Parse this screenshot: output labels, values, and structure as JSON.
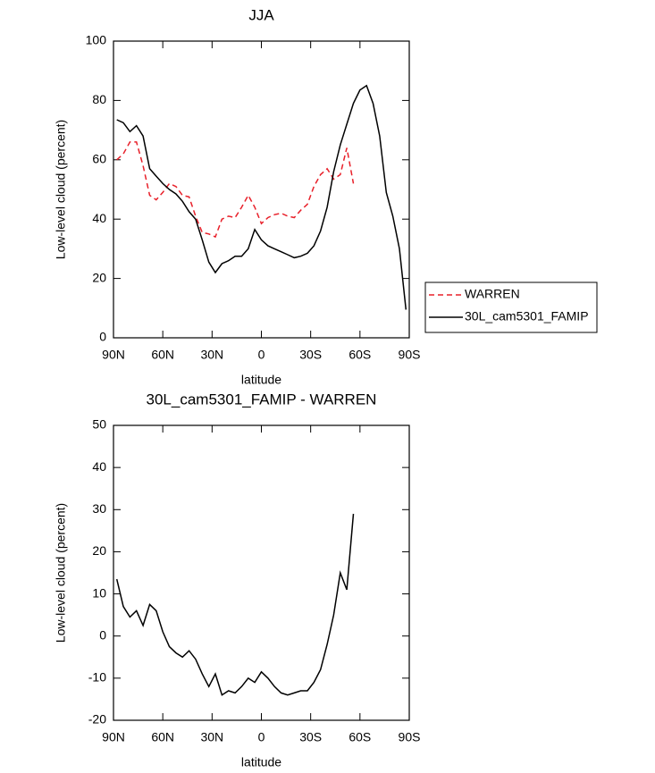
{
  "chart_data": [
    {
      "type": "line",
      "title": "JJA",
      "xlabel": "latitude",
      "ylabel": "Low-level cloud (percent)",
      "x": [
        88,
        84,
        80,
        76,
        72,
        68,
        64,
        60,
        56,
        52,
        48,
        44,
        40,
        36,
        32,
        28,
        24,
        20,
        16,
        12,
        8,
        4,
        0,
        -4,
        -8,
        -12,
        -16,
        -20,
        -24,
        -28,
        -32,
        -36,
        -40,
        -44,
        -48,
        -52,
        -56,
        -60,
        -64,
        -68,
        -72,
        -76,
        -80,
        -84,
        -88
      ],
      "xlim": [
        90,
        -90
      ],
      "xticks": [
        {
          "value": 90,
          "label": "90N"
        },
        {
          "value": 60,
          "label": "60N"
        },
        {
          "value": 30,
          "label": "30N"
        },
        0,
        {
          "value": -30,
          "label": "30S"
        },
        {
          "value": -60,
          "label": "60S"
        },
        {
          "value": -90,
          "label": "90S"
        }
      ],
      "ylim": [
        0,
        100
      ],
      "yticks": [
        0,
        20,
        40,
        60,
        80,
        100
      ],
      "legend": "outside-right",
      "series": [
        {
          "name": "WARREN",
          "color": "#e8202a",
          "dash": true,
          "values": [
            60,
            62,
            66,
            66,
            58,
            48,
            46.5,
            49,
            52,
            51,
            48,
            47.5,
            41,
            35.5,
            35,
            34,
            40,
            41,
            40.5,
            44,
            48,
            44,
            38.5,
            40.5,
            41.5,
            42,
            41,
            40.5,
            43,
            45,
            51,
            55,
            57,
            53.5,
            55,
            64,
            52,
            null,
            null,
            null,
            null,
            null,
            null,
            null,
            null
          ]
        },
        {
          "name": "30L_cam5301_FAMIP",
          "color": "#000000",
          "dash": false,
          "values": [
            73.5,
            72.5,
            69.5,
            71.5,
            68,
            57,
            54.5,
            52,
            50,
            48.5,
            46,
            42.5,
            40,
            33,
            25.5,
            22,
            25,
            26,
            27.5,
            27.5,
            30,
            36.5,
            33,
            31,
            30,
            29,
            28,
            27,
            27.5,
            28.5,
            31,
            36,
            44,
            56,
            65,
            72,
            79,
            83.5,
            85,
            79,
            68,
            49,
            41,
            30,
            9.5
          ]
        }
      ]
    },
    {
      "type": "line",
      "title": "30L_cam5301_FAMIP - WARREN",
      "xlabel": "latitude",
      "ylabel": "Low-level cloud (percent)",
      "x": [
        88,
        84,
        80,
        76,
        72,
        68,
        64,
        60,
        56,
        52,
        48,
        44,
        40,
        36,
        32,
        28,
        24,
        20,
        16,
        12,
        8,
        4,
        0,
        -4,
        -8,
        -12,
        -16,
        -20,
        -24,
        -28,
        -32,
        -36,
        -40,
        -44,
        -48,
        -52,
        -56,
        -60,
        -64,
        -68,
        -72,
        -76,
        -80,
        -84,
        -88
      ],
      "xlim": [
        90,
        -90
      ],
      "xticks": [
        {
          "value": 90,
          "label": "90N"
        },
        {
          "value": 60,
          "label": "60N"
        },
        {
          "value": 30,
          "label": "30N"
        },
        0,
        {
          "value": -30,
          "label": "30S"
        },
        {
          "value": -60,
          "label": "60S"
        },
        {
          "value": -90,
          "label": "90S"
        }
      ],
      "ylim": [
        -20,
        50
      ],
      "yticks": [
        -20,
        -10,
        0,
        10,
        20,
        30,
        40,
        50
      ],
      "series": [
        {
          "color": "#000000",
          "dash": false,
          "values": [
            13.5,
            7,
            4.5,
            6,
            2.5,
            7.5,
            6,
            1,
            -2.5,
            -4,
            -5,
            -3.5,
            -5.5,
            -9,
            -12,
            -9,
            -14,
            -13,
            -13.5,
            -12,
            -10,
            -11,
            -8.5,
            -10,
            -12,
            -13.5,
            -14,
            -13.5,
            -13,
            -13,
            -11,
            -8,
            -2,
            5,
            15,
            11,
            29,
            null,
            null,
            null,
            null,
            null,
            null,
            null,
            null
          ]
        }
      ]
    }
  ]
}
